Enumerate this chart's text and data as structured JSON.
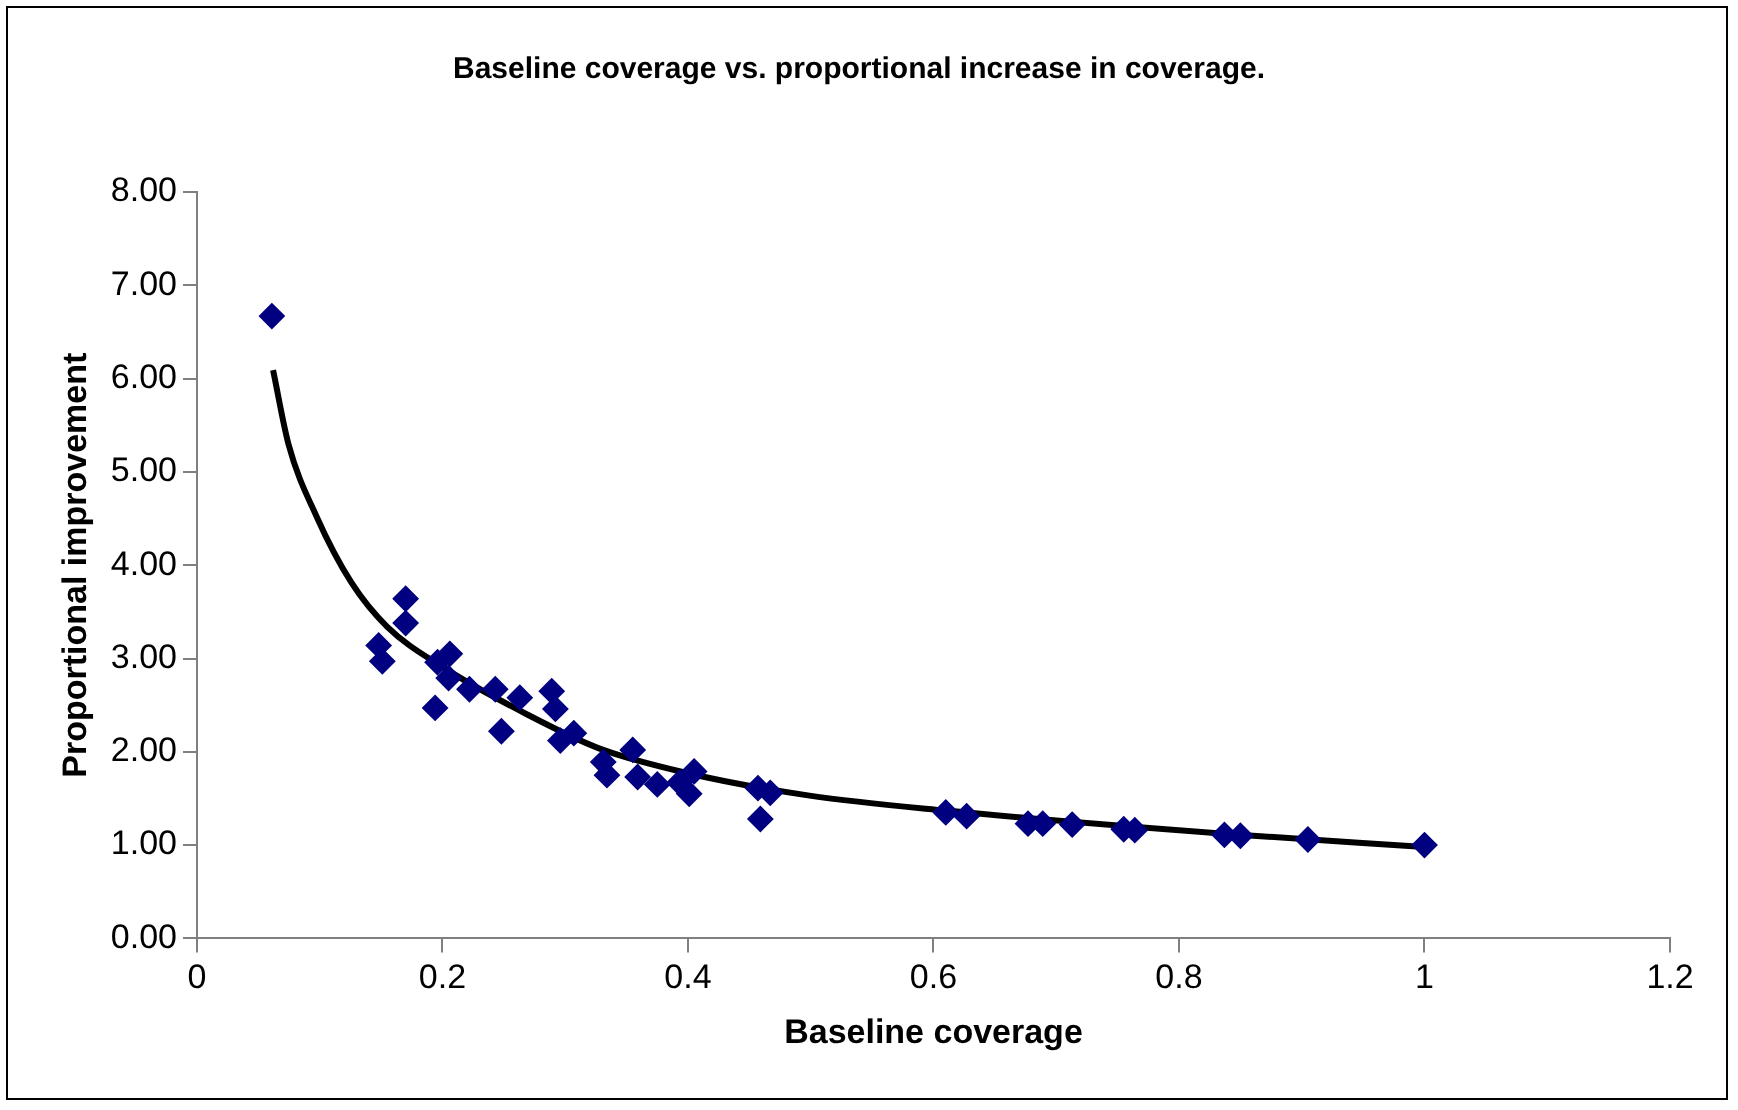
{
  "chart_data": {
    "type": "scatter",
    "title": "Baseline coverage vs. proportional increase in coverage.",
    "xlabel": "Baseline coverage",
    "ylabel": "Proportional improvement",
    "xlim": [
      0,
      1.2
    ],
    "xticks": [
      0,
      0.2,
      0.4,
      0.6,
      0.8,
      1,
      1.2
    ],
    "ylim": [
      0,
      8
    ],
    "yticks": [
      {
        "value": 0,
        "label": "0.00"
      },
      {
        "value": 1,
        "label": "1.00"
      },
      {
        "value": 2,
        "label": "2.00"
      },
      {
        "value": 3,
        "label": "3.00"
      },
      {
        "value": 4,
        "label": "4.00"
      },
      {
        "value": 5,
        "label": "5.00"
      },
      {
        "value": 6,
        "label": "6.00"
      },
      {
        "value": 7,
        "label": "7.00"
      },
      {
        "value": 8,
        "label": "8.00"
      }
    ],
    "grid": false,
    "legend": false,
    "marker": "diamond",
    "series": [
      {
        "color": "#000080",
        "x": [
          0.061,
          0.148,
          0.151,
          0.17,
          0.17,
          0.194,
          0.196,
          0.206,
          0.205,
          0.222,
          0.243,
          0.248,
          0.263,
          0.289,
          0.292,
          0.296,
          0.307,
          0.331,
          0.334,
          0.355,
          0.359,
          0.375,
          0.393,
          0.401,
          0.405,
          0.459,
          0.457,
          0.467,
          0.61,
          0.627,
          0.677,
          0.689,
          0.713,
          0.755,
          0.764,
          0.837,
          0.85,
          0.905,
          1
        ],
        "values": [
          6.67,
          3.14,
          2.97,
          3.64,
          3.38,
          2.47,
          2.96,
          3.05,
          2.79,
          2.67,
          2.67,
          2.22,
          2.58,
          2.65,
          2.46,
          2.12,
          2.2,
          1.89,
          1.75,
          2.02,
          1.73,
          1.65,
          1.67,
          1.55,
          1.79,
          1.28,
          1.61,
          1.56,
          1.35,
          1.31,
          1.23,
          1.23,
          1.22,
          1.17,
          1.16,
          1.11,
          1.1,
          1.06,
          1
        ]
      },
      {
        "type": "line",
        "color": "#000000",
        "marker": "none",
        "x": [
          0.062,
          0.0745,
          0.0975,
          0.126,
          0.155,
          0.2,
          0.269,
          0.327,
          0.4,
          0.499,
          0.61,
          0.839,
          1
        ],
        "values": [
          6.09,
          5.3,
          4.52,
          3.81,
          3.34,
          2.91,
          2.4,
          2.04,
          1.77,
          1.53,
          1.37,
          1.12,
          0.98
        ]
      }
    ]
  }
}
